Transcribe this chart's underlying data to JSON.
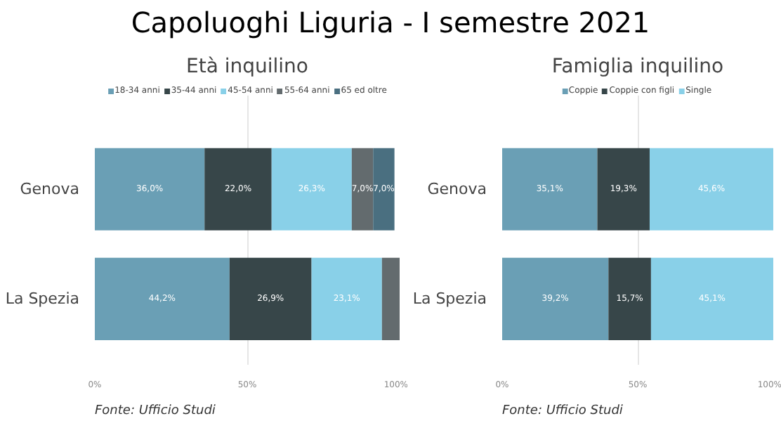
{
  "chart_data": [
    {
      "type": "bar",
      "orientation": "horizontal",
      "stacked": true,
      "title": "Capoluoghi Liguria - I semestre 2021",
      "subtitle": "Età inquilino",
      "categories": [
        "Genova",
        "La Spezia"
      ],
      "series": [
        {
          "name": "18-34 anni",
          "color": "#6a9fb5",
          "values": [
            36.0,
            44.2
          ],
          "value_labels": [
            "36,0%",
            "44,2%"
          ]
        },
        {
          "name": "35-44 anni",
          "color": "#374649",
          "values": [
            22.0,
            26.9
          ],
          "value_labels": [
            "22,0%",
            "26,9%"
          ]
        },
        {
          "name": "45-54 anni",
          "color": "#89d0e8",
          "values": [
            26.3,
            23.1
          ],
          "value_labels": [
            "26,3%",
            "23,1%"
          ]
        },
        {
          "name": "55-64 anni",
          "color": "#636b6e",
          "values": [
            7.0,
            5.8
          ],
          "value_labels": [
            "7,0%",
            null
          ]
        },
        {
          "name": "65 ed oltre",
          "color": "#4a6f80",
          "values": [
            7.0,
            null
          ],
          "value_labels": [
            "7,0%",
            null
          ]
        }
      ],
      "xlim": [
        0,
        100
      ],
      "xticks": [
        {
          "value": 0,
          "label": "0%"
        },
        {
          "value": 50,
          "label": "50%"
        },
        {
          "value": 100,
          "label": "100%"
        }
      ],
      "grid": "x",
      "legend": "top",
      "annotations": [
        "Fonte: Ufficio Studi"
      ]
    },
    {
      "type": "bar",
      "orientation": "horizontal",
      "stacked": true,
      "subtitle": "Famiglia inquilino",
      "categories": [
        "Genova",
        "La Spezia"
      ],
      "series": [
        {
          "name": "Coppie",
          "color": "#6a9fb5",
          "values": [
            35.1,
            39.2
          ],
          "value_labels": [
            "35,1%",
            "39,2%"
          ]
        },
        {
          "name": "Coppie con figli",
          "color": "#374649",
          "values": [
            19.3,
            15.7
          ],
          "value_labels": [
            "19,3%",
            "15,7%"
          ]
        },
        {
          "name": "Single",
          "color": "#89d0e8",
          "values": [
            45.6,
            45.1
          ],
          "value_labels": [
            "45,6%",
            "45,1%"
          ]
        }
      ],
      "xlim": [
        0,
        100
      ],
      "xticks": [
        {
          "value": 0,
          "label": "0%"
        },
        {
          "value": 50,
          "label": "50%"
        },
        {
          "value": 100,
          "label": "100%"
        }
      ],
      "grid": "x",
      "legend": "top",
      "annotations": [
        "Fonte: Ufficio Studi"
      ]
    }
  ]
}
